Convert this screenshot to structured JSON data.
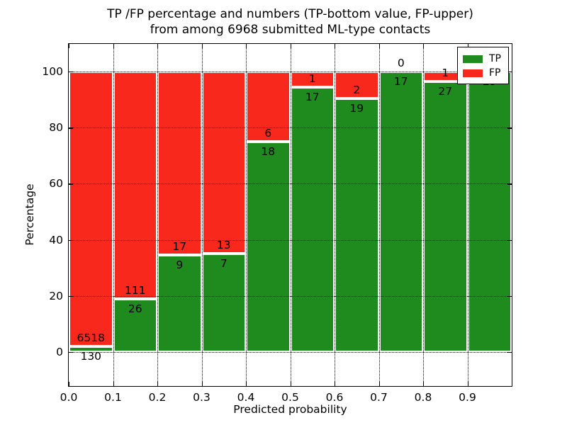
{
  "figure": {
    "title_line1": "TP /FP percentage and numbers (TP-bottom value, FP-upper)",
    "title_line2": "from among 6968 submitted ML-type contacts",
    "xlabel": "Predicted probability",
    "ylabel": "Percentage"
  },
  "chart_data": {
    "type": "bar",
    "subtype": "stacked-percentage-histogram",
    "title": "TP /FP percentage and numbers (TP-bottom value, FP-upper)\nfrom among 6968 submitted ML-type contacts",
    "xlabel": "Predicted probability",
    "ylabel": "Percentage",
    "total_contacts": 6968,
    "bins": [
      0.0,
      0.1,
      0.2,
      0.3,
      0.4,
      0.5,
      0.6,
      0.7,
      0.8,
      0.9
    ],
    "bin_width": 0.1,
    "series": [
      {
        "name": "TP",
        "color": "#1f8b1f",
        "counts": [
          130,
          26,
          9,
          7,
          18,
          17,
          19,
          17,
          27,
          29
        ]
      },
      {
        "name": "FP",
        "color": "#f9281c",
        "counts": [
          6518,
          111,
          17,
          13,
          6,
          1,
          2,
          0,
          1,
          0
        ]
      }
    ],
    "tp_percent_of_bin": [
      1.96,
      18.98,
      34.62,
      35.0,
      75.0,
      94.44,
      90.48,
      100.0,
      96.43,
      100.0
    ],
    "xticks": [
      "0.0",
      "0.1",
      "0.2",
      "0.3",
      "0.4",
      "0.5",
      "0.6",
      "0.7",
      "0.8",
      "0.9"
    ],
    "yticks": [
      "0",
      "20",
      "40",
      "60",
      "80",
      "100"
    ],
    "ytick_values": [
      0,
      20,
      40,
      60,
      80,
      100
    ],
    "xlim": [
      0.0,
      1.0
    ],
    "ylim": [
      -12,
      110
    ],
    "grid": "dotted black, horizontal and vertical",
    "bar_edge_color": "#ffffff",
    "legend": {
      "position": "upper right",
      "entries": [
        {
          "label": "TP",
          "color": "#1f8b1f"
        },
        {
          "label": "FP",
          "color": "#f9281c"
        }
      ]
    }
  }
}
